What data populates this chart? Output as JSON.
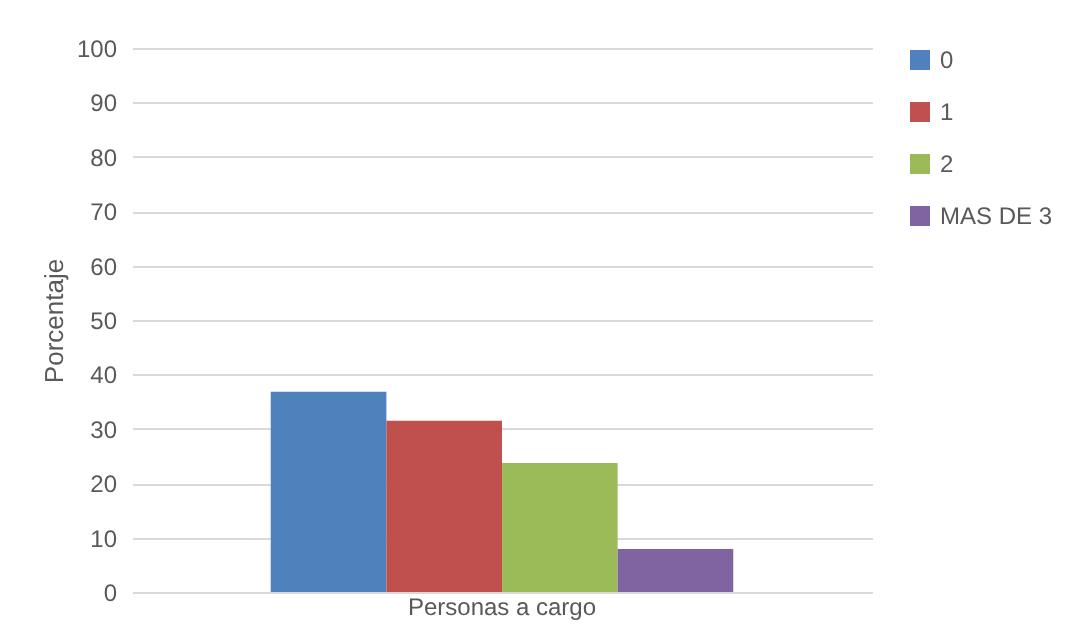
{
  "chart_data": {
    "type": "bar",
    "categories": [
      "Personas a cargo"
    ],
    "ylabel": "Porcentaje",
    "series": [
      {
        "name": "0",
        "color": "#4f81bd",
        "values": [
          36.8
        ]
      },
      {
        "name": "1",
        "color": "#c0504d",
        "values": [
          31.5
        ]
      },
      {
        "name": "2",
        "color": "#9bbb59",
        "values": [
          23.7
        ]
      },
      {
        "name": "MAS DE 3",
        "color": "#8064a2",
        "values": [
          7.9
        ]
      }
    ],
    "ylim": [
      0,
      100
    ],
    "yticks": [
      0,
      10,
      20,
      30,
      40,
      50,
      60,
      70,
      80,
      90,
      100
    ],
    "grid": "y",
    "legend": "right"
  }
}
